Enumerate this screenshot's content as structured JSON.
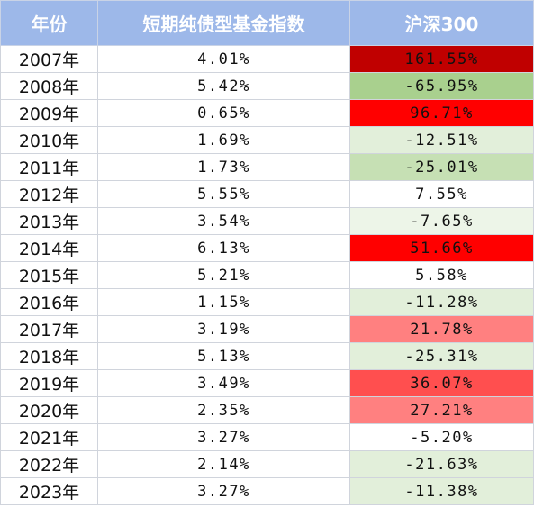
{
  "table": {
    "headers": [
      "年份",
      "短期纯债型基金指数",
      "沪深300"
    ],
    "rows": [
      {
        "year": "2007年",
        "bond": "4.01%",
        "csi": "161.55%",
        "color": "#c00000"
      },
      {
        "year": "2008年",
        "bond": "5.42%",
        "csi": "-65.95%",
        "color": "#a9d08e"
      },
      {
        "year": "2009年",
        "bond": "0.65%",
        "csi": "96.71%",
        "color": "#ff0000"
      },
      {
        "year": "2010年",
        "bond": "1.69%",
        "csi": "-12.51%",
        "color": "#e2efda"
      },
      {
        "year": "2011年",
        "bond": "1.73%",
        "csi": "-25.01%",
        "color": "#c6e0b4"
      },
      {
        "year": "2012年",
        "bond": "5.55%",
        "csi": "7.55%",
        "color": "#ffffff"
      },
      {
        "year": "2013年",
        "bond": "3.54%",
        "csi": "-7.65%",
        "color": "#edf5e8"
      },
      {
        "year": "2014年",
        "bond": "6.13%",
        "csi": "51.66%",
        "color": "#ff0000"
      },
      {
        "year": "2015年",
        "bond": "5.21%",
        "csi": "5.58%",
        "color": "#ffffff"
      },
      {
        "year": "2016年",
        "bond": "1.15%",
        "csi": "-11.28%",
        "color": "#e2efda"
      },
      {
        "year": "2017年",
        "bond": "3.19%",
        "csi": "21.78%",
        "color": "#ff8080"
      },
      {
        "year": "2018年",
        "bond": "5.13%",
        "csi": "-25.31%",
        "color": "#e2efda"
      },
      {
        "year": "2019年",
        "bond": "3.49%",
        "csi": "36.07%",
        "color": "#ff4f4f"
      },
      {
        "year": "2020年",
        "bond": "2.35%",
        "csi": "27.21%",
        "color": "#ff8080"
      },
      {
        "year": "2021年",
        "bond": "3.27%",
        "csi": "-5.20%",
        "color": "#ffffff"
      },
      {
        "year": "2022年",
        "bond": "2.14%",
        "csi": "-21.63%",
        "color": "#e2efda"
      },
      {
        "year": "2023年",
        "bond": "3.27%",
        "csi": "-11.38%",
        "color": "#e2efda"
      }
    ]
  }
}
